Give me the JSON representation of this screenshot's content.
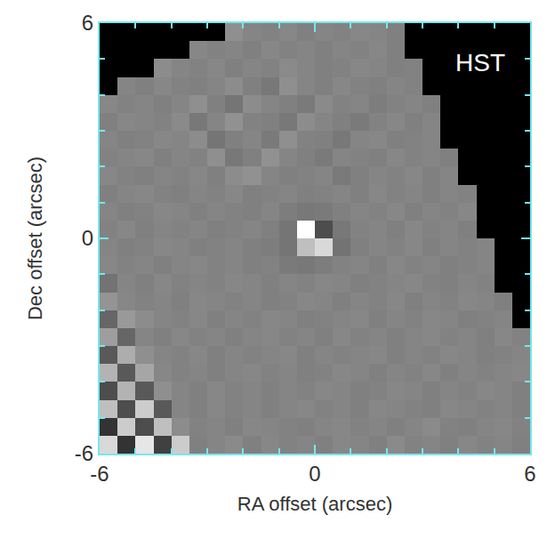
{
  "chart_data": {
    "type": "heatmap",
    "x_label": "RA offset (arcsec)",
    "y_label": "Dec offset (arcsec)",
    "xlim": [
      -6,
      6
    ],
    "ylim": [
      -6,
      6
    ],
    "xticks": [
      -6,
      0,
      6
    ],
    "yticks": [
      -6,
      0,
      6
    ],
    "annotations": [
      {
        "text": "HST",
        "x": 4.6,
        "y": 4.9
      }
    ],
    "x": [
      -5.75,
      -5.25,
      -4.75,
      -4.25,
      -3.75,
      -3.25,
      -2.75,
      -2.25,
      -1.75,
      -1.25,
      -0.75,
      -0.25,
      0.25,
      0.75,
      1.25,
      1.75,
      2.25,
      2.75,
      3.25,
      3.75,
      4.25,
      4.75,
      5.25,
      5.75
    ],
    "y": [
      -5.75,
      -5.25,
      -4.75,
      -4.25,
      -3.75,
      -3.25,
      -2.75,
      -2.25,
      -1.75,
      -1.25,
      -0.75,
      -0.25,
      0.25,
      0.75,
      1.25,
      1.75,
      2.25,
      2.75,
      3.25,
      3.75,
      4.25,
      4.75,
      5.25,
      5.75
    ],
    "z": [
      [
        0.85,
        0.2,
        0.9,
        0.25,
        0.8,
        0.5,
        0.52,
        0.54,
        0.5,
        0.53,
        0.51,
        0.52,
        0.5,
        0.53,
        0.52,
        0.5,
        0.54,
        0.51,
        0.52,
        0.5,
        0.53,
        0.51,
        0.52,
        0.5
      ],
      [
        0.2,
        0.8,
        0.3,
        0.75,
        0.55,
        0.51,
        0.52,
        0.5,
        0.53,
        0.52,
        0.51,
        0.5,
        0.52,
        0.53,
        0.51,
        0.52,
        0.5,
        0.52,
        0.54,
        0.51,
        0.5,
        0.52,
        0.53,
        0.51
      ],
      [
        0.75,
        0.3,
        0.8,
        0.35,
        0.52,
        0.5,
        0.53,
        0.51,
        0.52,
        0.5,
        0.52,
        0.53,
        0.51,
        0.52,
        0.5,
        0.53,
        0.52,
        0.51,
        0.5,
        0.53,
        0.52,
        0.51,
        0.52,
        0.5
      ],
      [
        0.3,
        0.7,
        0.35,
        0.56,
        0.52,
        0.5,
        0.53,
        0.51,
        0.52,
        0.5,
        0.52,
        0.51,
        0.53,
        0.52,
        0.5,
        0.51,
        0.53,
        0.52,
        0.5,
        0.52,
        0.51,
        0.53,
        0.52,
        0.5
      ],
      [
        0.7,
        0.35,
        0.65,
        0.53,
        0.51,
        0.52,
        0.5,
        0.52,
        0.53,
        0.51,
        0.52,
        0.5,
        0.51,
        0.53,
        0.52,
        0.5,
        0.52,
        0.51,
        0.53,
        0.5,
        0.52,
        0.51,
        0.52,
        0.53
      ],
      [
        0.35,
        0.68,
        0.56,
        0.52,
        0.51,
        0.53,
        0.5,
        0.52,
        0.51,
        0.52,
        0.53,
        0.5,
        0.52,
        0.51,
        0.52,
        0.53,
        0.5,
        0.52,
        0.51,
        0.53,
        0.52,
        0.5,
        0.51,
        0.52
      ],
      [
        0.62,
        0.4,
        0.52,
        0.5,
        0.53,
        0.51,
        0.52,
        0.5,
        0.52,
        0.53,
        0.51,
        0.52,
        0.5,
        0.53,
        0.51,
        0.52,
        0.5,
        0.52,
        0.53,
        0.51,
        0.52,
        0.5,
        0.53,
        0.51
      ],
      [
        0.4,
        0.6,
        0.55,
        0.52,
        0.51,
        0.53,
        0.5,
        0.52,
        0.51,
        0.53,
        0.52,
        0.5,
        0.51,
        0.52,
        0.53,
        0.5,
        0.52,
        0.51,
        0.53,
        0.52,
        0.5,
        0.51,
        0.52,
        0
      ],
      [
        0.58,
        0.53,
        0.51,
        0.52,
        0.5,
        0.53,
        0.52,
        0.51,
        0.52,
        0.5,
        0.51,
        0.53,
        0.52,
        0.5,
        0.52,
        0.51,
        0.53,
        0.5,
        0.52,
        0.51,
        0.53,
        0.52,
        0.5,
        0
      ],
      [
        0.45,
        0.52,
        0.5,
        0.53,
        0.51,
        0.52,
        0.51,
        0.53,
        0.52,
        0.5,
        0.52,
        0.51,
        0.53,
        0.52,
        0.5,
        0.51,
        0.52,
        0.53,
        0.51,
        0.5,
        0.52,
        0.51,
        0,
        0
      ],
      [
        0.53,
        0.51,
        0.52,
        0.5,
        0.52,
        0.53,
        0.51,
        0.52,
        0.5,
        0.51,
        0.48,
        0.47,
        0.49,
        0.51,
        0.52,
        0.5,
        0.53,
        0.51,
        0.52,
        0.5,
        0.51,
        0.52,
        0,
        0
      ],
      [
        0.52,
        0.5,
        0.51,
        0.53,
        0.52,
        0.5,
        0.51,
        0.52,
        0.5,
        0.49,
        0.46,
        0.75,
        0.85,
        0.45,
        0.5,
        0.52,
        0.51,
        0.53,
        0.5,
        0.52,
        0.51,
        0.52,
        0,
        0
      ],
      [
        0.51,
        0.53,
        0.5,
        0.52,
        0.51,
        0.52,
        0.5,
        0.51,
        0.52,
        0.5,
        0.46,
        1.0,
        0.3,
        0.47,
        0.51,
        0.52,
        0.5,
        0.53,
        0.51,
        0.52,
        0.5,
        0,
        0,
        0
      ],
      [
        0.52,
        0.5,
        0.51,
        0.53,
        0.52,
        0.5,
        0.52,
        0.51,
        0.5,
        0.52,
        0.49,
        0.47,
        0.48,
        0.5,
        0.52,
        0.51,
        0.53,
        0.5,
        0.52,
        0.51,
        0.53,
        0,
        0,
        0
      ],
      [
        0.5,
        0.52,
        0.53,
        0.51,
        0.5,
        0.52,
        0.51,
        0.53,
        0.5,
        0.51,
        0.52,
        0.5,
        0.51,
        0.52,
        0.5,
        0.53,
        0.51,
        0.52,
        0.5,
        0.52,
        0.51,
        0,
        0,
        0
      ],
      [
        0.53,
        0.51,
        0.5,
        0.52,
        0.51,
        0.53,
        0.5,
        0.55,
        0.57,
        0.52,
        0.5,
        0.51,
        0.52,
        0.48,
        0.5,
        0.52,
        0.51,
        0.53,
        0.5,
        0.52,
        0,
        0,
        0,
        0
      ],
      [
        0.51,
        0.52,
        0.53,
        0.5,
        0.52,
        0.51,
        0.56,
        0.47,
        0.5,
        0.57,
        0.52,
        0.5,
        0.48,
        0.52,
        0.51,
        0.5,
        0.53,
        0.51,
        0.52,
        0.5,
        0,
        0,
        0,
        0
      ],
      [
        0.52,
        0.5,
        0.51,
        0.53,
        0.52,
        0.55,
        0.46,
        0.5,
        0.52,
        0.48,
        0.56,
        0.51,
        0.5,
        0.47,
        0.52,
        0.53,
        0.5,
        0.51,
        0.52,
        0,
        0,
        0,
        0,
        0
      ],
      [
        0.5,
        0.53,
        0.52,
        0.51,
        0.54,
        0.47,
        0.52,
        0.57,
        0.51,
        0.5,
        0.47,
        0.55,
        0.52,
        0.5,
        0.48,
        0.51,
        0.53,
        0.5,
        0.52,
        0,
        0,
        0,
        0,
        0
      ],
      [
        0.53,
        0.51,
        0.52,
        0.5,
        0.52,
        0.56,
        0.5,
        0.46,
        0.55,
        0.52,
        0.5,
        0.48,
        0.54,
        0.51,
        0.52,
        0.49,
        0.51,
        0.52,
        0.5,
        0,
        0,
        0,
        0,
        0
      ],
      [
        0,
        0.52,
        0.5,
        0.53,
        0.51,
        0.5,
        0.52,
        0.55,
        0.5,
        0.47,
        0.56,
        0.52,
        0.5,
        0.53,
        0.51,
        0.5,
        0.52,
        0.51,
        0,
        0,
        0,
        0,
        0,
        0
      ],
      [
        0,
        0,
        0,
        0.55,
        0.52,
        0.51,
        0.53,
        0.5,
        0.52,
        0.51,
        0.54,
        0.52,
        0.5,
        0.51,
        0.53,
        0.52,
        0.5,
        0.51,
        0,
        0,
        0,
        0,
        0,
        0
      ],
      [
        0,
        0,
        0,
        0,
        0,
        0.53,
        0.51,
        0.52,
        0.5,
        0.53,
        0.51,
        0.52,
        0.5,
        0.52,
        0.51,
        0.53,
        0.5,
        0,
        0,
        0,
        0,
        0,
        0,
        0
      ],
      [
        0,
        0,
        0,
        0,
        0,
        0,
        0,
        0.56,
        0.52,
        0.51,
        0.53,
        0.5,
        0.52,
        0.51,
        0.53,
        0.52,
        0.5,
        0,
        0,
        0,
        0,
        0,
        0,
        0
      ]
    ]
  }
}
